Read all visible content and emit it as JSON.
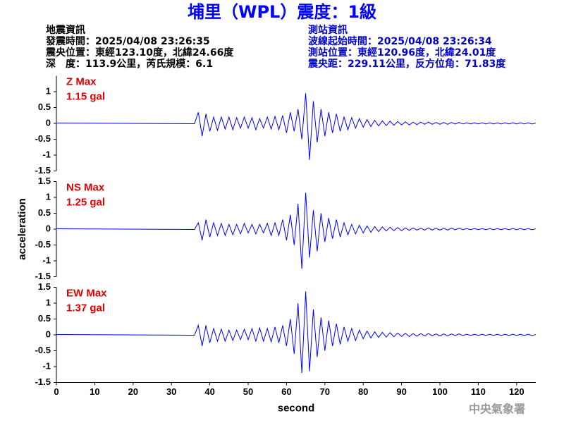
{
  "header": {
    "title": "埔里（WPL）震度：1級",
    "left_info": [
      "地震資訊",
      "發震時間：2025/04/08 23:26:35",
      "震央位置：東經123.10度，北緯24.66度",
      "深　度：113.9公里，芮氏規模：6.1"
    ],
    "right_info": [
      "測站資訊",
      "波線起始時間：2025/04/08 23:26:34",
      "測站位置：東經120.96度，北緯24.01度",
      "震央距：229.11公里，反方位角：71.83度"
    ]
  },
  "footer": "中央氣象署",
  "chart_data": [
    {
      "type": "line",
      "annotation": [
        "Z Max",
        "1.15 gal"
      ],
      "ylim": [
        -1.5,
        1.5
      ],
      "yticks": [
        -1.5,
        -1,
        -0.5,
        0,
        0.5,
        1
      ],
      "xlim": [
        0,
        125
      ],
      "x": [
        0,
        36,
        37,
        38,
        39,
        40,
        41,
        42,
        43,
        44,
        45,
        46,
        47,
        48,
        49,
        50,
        51,
        52,
        53,
        54,
        55,
        56,
        57,
        58,
        59,
        60,
        61,
        62,
        63,
        64,
        65,
        66,
        67,
        68,
        69,
        70,
        71,
        72,
        73,
        74,
        75,
        76,
        77,
        78,
        79,
        80,
        81,
        82,
        83,
        84,
        85,
        86,
        87,
        88,
        89,
        90,
        91,
        92,
        93,
        94,
        95,
        96,
        97,
        98,
        99,
        100,
        101,
        102,
        103,
        104,
        105,
        106,
        107,
        108,
        109,
        110,
        111,
        112,
        113,
        114,
        115,
        116,
        117,
        118,
        119,
        120,
        121,
        122,
        123,
        124,
        125
      ],
      "series": [
        {
          "color": "#0000ff",
          "values": [
            0.01,
            -0.01,
            0.35,
            -0.4,
            0.3,
            -0.25,
            0.2,
            -0.22,
            0.2,
            -0.18,
            0.2,
            -0.2,
            0.18,
            -0.15,
            0.2,
            -0.15,
            0.18,
            -0.2,
            0.15,
            -0.15,
            0.2,
            -0.18,
            0.22,
            -0.2,
            0.25,
            -0.3,
            0.35,
            -0.25,
            0.45,
            -0.5,
            0.95,
            -1.15,
            0.7,
            -0.6,
            0.45,
            -0.4,
            0.35,
            -0.3,
            0.3,
            -0.25,
            0.2,
            -0.2,
            0.18,
            -0.15,
            0.15,
            -0.12,
            0.12,
            -0.1,
            0.1,
            -0.08,
            0.08,
            -0.07,
            0.07,
            -0.06,
            0.06,
            -0.05,
            0.05,
            -0.05,
            0.04,
            -0.04,
            0.04,
            -0.03,
            0.04,
            -0.03,
            0.03,
            -0.03,
            0.03,
            -0.03,
            0.03,
            -0.02,
            0.03,
            -0.02,
            0.02,
            -0.02,
            0.02,
            -0.02,
            0.02,
            -0.02,
            0.02,
            -0.02,
            0.02,
            -0.02,
            0.02,
            -0.02,
            0.02,
            -0.02,
            0.02,
            -0.02,
            0.02,
            -0.02,
            0.01
          ]
        }
      ]
    },
    {
      "type": "line",
      "annotation": [
        "NS Max",
        "1.25 gal"
      ],
      "y_label": "acceleration",
      "ylim": [
        -1.5,
        1.5
      ],
      "yticks": [
        -1.5,
        -1,
        -0.5,
        0,
        0.5,
        1,
        1.5
      ],
      "xlim": [
        0,
        125
      ],
      "x": [
        0,
        36,
        37,
        38,
        39,
        40,
        41,
        42,
        43,
        44,
        45,
        46,
        47,
        48,
        49,
        50,
        51,
        52,
        53,
        54,
        55,
        56,
        57,
        58,
        59,
        60,
        61,
        62,
        63,
        64,
        65,
        66,
        67,
        68,
        69,
        70,
        71,
        72,
        73,
        74,
        75,
        76,
        77,
        78,
        79,
        80,
        81,
        82,
        83,
        84,
        85,
        86,
        87,
        88,
        89,
        90,
        91,
        92,
        93,
        94,
        95,
        96,
        97,
        98,
        99,
        100,
        101,
        102,
        103,
        104,
        105,
        106,
        107,
        108,
        109,
        110,
        111,
        112,
        113,
        114,
        115,
        116,
        117,
        118,
        119,
        120,
        121,
        122,
        123,
        124,
        125
      ],
      "series": [
        {
          "color": "#0000ff",
          "values": [
            0.01,
            -0.01,
            0.2,
            -0.35,
            0.3,
            -0.25,
            0.2,
            -0.2,
            0.18,
            -0.2,
            0.15,
            -0.18,
            0.15,
            -0.15,
            0.18,
            -0.12,
            0.15,
            -0.15,
            0.15,
            -0.12,
            0.18,
            -0.2,
            0.2,
            -0.2,
            0.3,
            -0.35,
            0.45,
            -0.5,
            0.8,
            -1.25,
            1.15,
            -0.9,
            0.6,
            -0.7,
            0.5,
            -0.4,
            0.35,
            -0.3,
            0.3,
            -0.25,
            0.2,
            -0.18,
            0.15,
            -0.15,
            0.12,
            -0.12,
            0.1,
            -0.1,
            0.08,
            -0.08,
            0.07,
            -0.06,
            0.06,
            -0.05,
            0.05,
            -0.05,
            0.04,
            -0.04,
            0.04,
            -0.03,
            0.03,
            -0.03,
            0.04,
            -0.03,
            0.03,
            -0.03,
            0.03,
            -0.03,
            0.03,
            -0.02,
            0.03,
            -0.02,
            0.02,
            -0.02,
            0.02,
            -0.02,
            0.02,
            -0.02,
            0.02,
            -0.02,
            0.02,
            -0.02,
            0.02,
            -0.02,
            0.02,
            -0.02,
            0.02,
            -0.02,
            0.02,
            -0.02,
            0.01
          ]
        }
      ]
    },
    {
      "type": "line",
      "annotation": [
        "EW Max",
        "1.37 gal"
      ],
      "x_label": "second",
      "ylim": [
        -1.5,
        1.5
      ],
      "yticks": [
        -1.5,
        -1,
        -0.5,
        0,
        0.5,
        1,
        1.5
      ],
      "xlim": [
        0,
        125
      ],
      "xticks": [
        0,
        10,
        20,
        30,
        40,
        50,
        60,
        70,
        80,
        90,
        100,
        110,
        120
      ],
      "x": [
        0,
        36,
        37,
        38,
        39,
        40,
        41,
        42,
        43,
        44,
        45,
        46,
        47,
        48,
        49,
        50,
        51,
        52,
        53,
        54,
        55,
        56,
        57,
        58,
        59,
        60,
        61,
        62,
        63,
        64,
        65,
        66,
        67,
        68,
        69,
        70,
        71,
        72,
        73,
        74,
        75,
        76,
        77,
        78,
        79,
        80,
        81,
        82,
        83,
        84,
        85,
        86,
        87,
        88,
        89,
        90,
        91,
        92,
        93,
        94,
        95,
        96,
        97,
        98,
        99,
        100,
        101,
        102,
        103,
        104,
        105,
        106,
        107,
        108,
        109,
        110,
        111,
        112,
        113,
        114,
        115,
        116,
        117,
        118,
        119,
        120,
        121,
        122,
        123,
        124,
        125
      ],
      "series": [
        {
          "color": "#0000ff",
          "values": [
            0.01,
            -0.01,
            0.3,
            -0.35,
            0.3,
            -0.25,
            0.2,
            -0.2,
            0.18,
            -0.2,
            0.15,
            -0.18,
            0.15,
            -0.15,
            0.18,
            -0.15,
            0.2,
            -0.2,
            0.22,
            -0.2,
            0.2,
            -0.22,
            0.25,
            -0.25,
            0.3,
            -0.35,
            0.5,
            -0.6,
            1.0,
            -1.2,
            1.37,
            -1.15,
            0.8,
            -0.7,
            0.55,
            -0.5,
            0.45,
            -0.35,
            0.35,
            -0.3,
            0.25,
            -0.2,
            0.2,
            -0.18,
            0.15,
            -0.12,
            0.12,
            -0.1,
            0.1,
            -0.08,
            0.08,
            -0.07,
            0.07,
            -0.06,
            0.06,
            -0.05,
            0.05,
            -0.05,
            0.04,
            -0.04,
            0.04,
            -0.03,
            0.04,
            -0.03,
            0.03,
            -0.03,
            0.03,
            -0.03,
            0.03,
            -0.02,
            0.03,
            -0.02,
            0.02,
            -0.02,
            0.02,
            -0.02,
            0.02,
            -0.02,
            0.02,
            -0.02,
            0.02,
            -0.02,
            0.02,
            -0.02,
            0.02,
            -0.02,
            0.02,
            -0.02,
            0.02,
            -0.02,
            0.01
          ]
        }
      ]
    }
  ]
}
